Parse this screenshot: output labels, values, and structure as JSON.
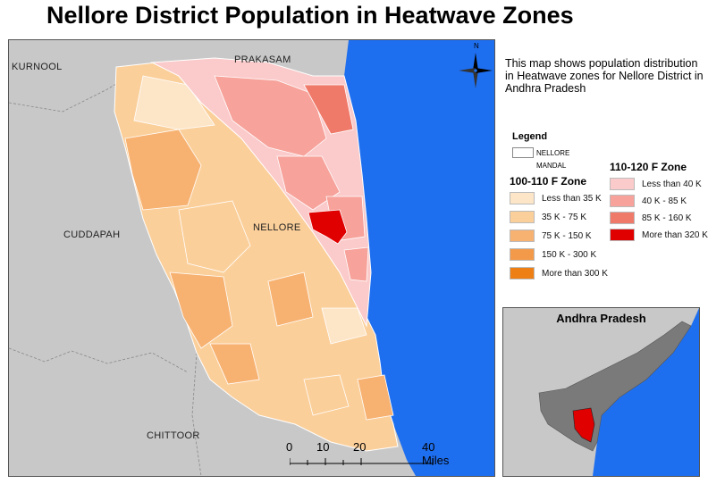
{
  "title": "Nellore District Population in Heatwave Zones",
  "description": "This map shows population distribution in Heatwave zones for Nellore District in Andhra Pradesh",
  "map_labels": {
    "kurnool": "KURNOOL",
    "prakasam": "PRAKASAM",
    "cuddapah": "CUDDAPAH",
    "nellore": "NELLORE",
    "chittoor": "CHITTOOR"
  },
  "north_arrow": "N",
  "legend": {
    "title": "Legend",
    "nellore": "NELLORE",
    "mandal": "MANDAL",
    "zone_100_110": {
      "heading": "100-110 F Zone",
      "items": [
        {
          "label": "Less than 35 K",
          "color": "#fde5c8"
        },
        {
          "label": "35 K - 75 K",
          "color": "#fbcf9a"
        },
        {
          "label": "75 K - 150 K",
          "color": "#f7b272"
        },
        {
          "label": "150 K - 300 K",
          "color": "#f39a4a"
        },
        {
          "label": "More than 300 K",
          "color": "#ee7f14"
        }
      ]
    },
    "zone_110_120": {
      "heading": "110-120 F Zone",
      "items": [
        {
          "label": "Less than 40 K",
          "color": "#fbcaca"
        },
        {
          "label": "40 K - 85 K",
          "color": "#f7a29a"
        },
        {
          "label": "85 K - 160 K",
          "color": "#f07a6a"
        },
        {
          "label": "More than 320 K",
          "color": "#e00000"
        }
      ]
    }
  },
  "inset": {
    "title": "Andhra Pradesh"
  },
  "scale_bar": {
    "ticks": [
      "0",
      "10",
      "20",
      "40 Miles"
    ]
  },
  "colors": {
    "sea": "#1e6ff0",
    "land": "#c8c8c8",
    "state_gray": "#7a7a7a"
  }
}
